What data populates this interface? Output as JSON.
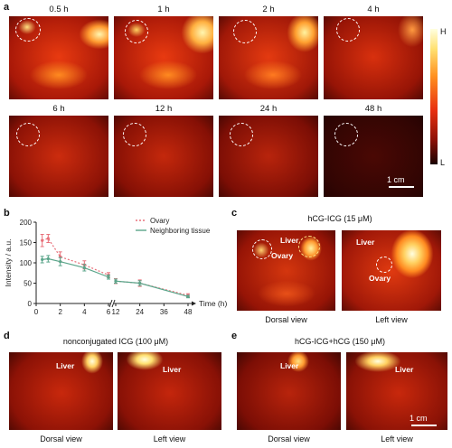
{
  "panels": {
    "a": "a",
    "b": "b",
    "c": "c",
    "d": "d",
    "e": "e"
  },
  "panel_a": {
    "timepoints": [
      "0.5 h",
      "1 h",
      "2 h",
      "4 h",
      "6 h",
      "12 h",
      "24 h",
      "48 h"
    ],
    "colorbar": {
      "high": "H",
      "low": "L"
    },
    "scale_bar": "1 cm"
  },
  "panel_c": {
    "title": "hCG-ICG (15 μM)",
    "liver": "Liver",
    "ovary": "Ovary",
    "dorsal": "Dorsal view",
    "left": "Left view"
  },
  "panel_d": {
    "title": "nonconjugated ICG (100 μM)",
    "liver": "Liver",
    "dorsal": "Dorsal view",
    "left": "Left view"
  },
  "panel_e": {
    "title": "hCG-ICG+hCG (150 μM)",
    "liver": "Liver",
    "dorsal": "Dorsal view",
    "left": "Left view",
    "scale_bar": "1 cm"
  },
  "chart_data": {
    "type": "line",
    "ylabel": "Intensity / a.u.",
    "xlabel": "Time (h)",
    "ylim": [
      0,
      200
    ],
    "yticks": [
      "0",
      "50",
      "100",
      "150",
      "200"
    ],
    "xticks": [
      "0",
      "2",
      "4",
      "6",
      "12",
      "24",
      "36",
      "48"
    ],
    "x_break": "between 6 and 12",
    "legend_position": "top-right",
    "x": [
      0.5,
      1,
      2,
      4,
      6,
      12,
      24,
      48
    ],
    "series": [
      {
        "name": "Ovary",
        "color": "#e8707a",
        "style": "dotted",
        "values": [
          155,
          160,
          115,
          95,
          70,
          55,
          50,
          20
        ],
        "errors": [
          15,
          10,
          12,
          10,
          6,
          6,
          8,
          4
        ]
      },
      {
        "name": "Neighboring tissue",
        "color": "#5aa58a",
        "style": "solid",
        "values": [
          108,
          110,
          103,
          88,
          65,
          55,
          50,
          17
        ],
        "errors": [
          8,
          8,
          10,
          8,
          5,
          5,
          6,
          3
        ]
      }
    ]
  },
  "colors": {
    "heat_hot": "#ffe27a",
    "heat_mid": "#d42a10",
    "heat_low": "#3a0703"
  }
}
